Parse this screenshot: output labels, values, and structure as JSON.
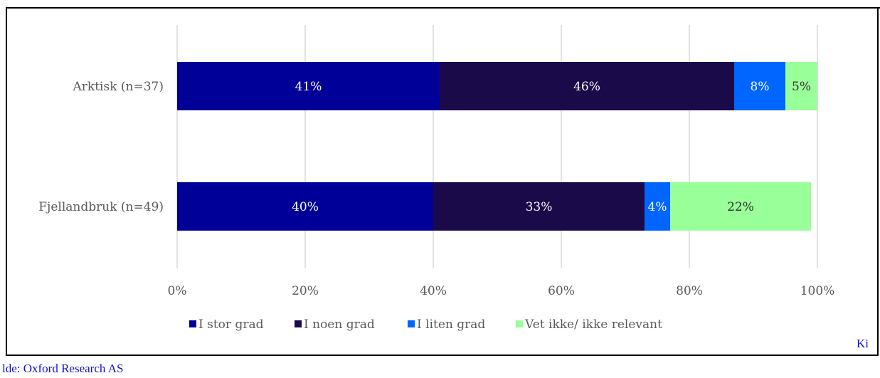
{
  "heading_fragment": "",
  "chart_data": {
    "type": "bar",
    "orientation": "horizontal",
    "stacked": true,
    "categories": [
      "Arktisk (n=37)",
      "Fjellandbruk (n=49)"
    ],
    "series": [
      {
        "name": "I stor grad",
        "values": [
          41,
          40
        ],
        "labels": [
          "41%",
          "40%"
        ],
        "color": "#000099",
        "label_color": "#ffffff"
      },
      {
        "name": "I noen grad",
        "values": [
          46,
          33
        ],
        "labels": [
          "46%",
          "33%"
        ],
        "color": "#1a0a4a",
        "label_color": "#ffffff"
      },
      {
        "name": "I liten grad",
        "values": [
          8,
          4
        ],
        "labels": [
          "8%",
          "4%"
        ],
        "color": "#0066ff",
        "label_color": "#ffffff"
      },
      {
        "name": "Vet ikke/ ikke relevant",
        "values": [
          5,
          22
        ],
        "labels": [
          "5%",
          "22%"
        ],
        "color": "#99ff99",
        "label_color": "#333333"
      }
    ],
    "xlim": [
      0,
      100
    ],
    "x_ticks": [
      "0%",
      "20%",
      "40%",
      "60%",
      "80%",
      "100%"
    ],
    "grid": true,
    "legend_position": "bottom"
  },
  "footer": {
    "source": "lde: Oxford Research AS",
    "right_fragment": "Ki"
  }
}
